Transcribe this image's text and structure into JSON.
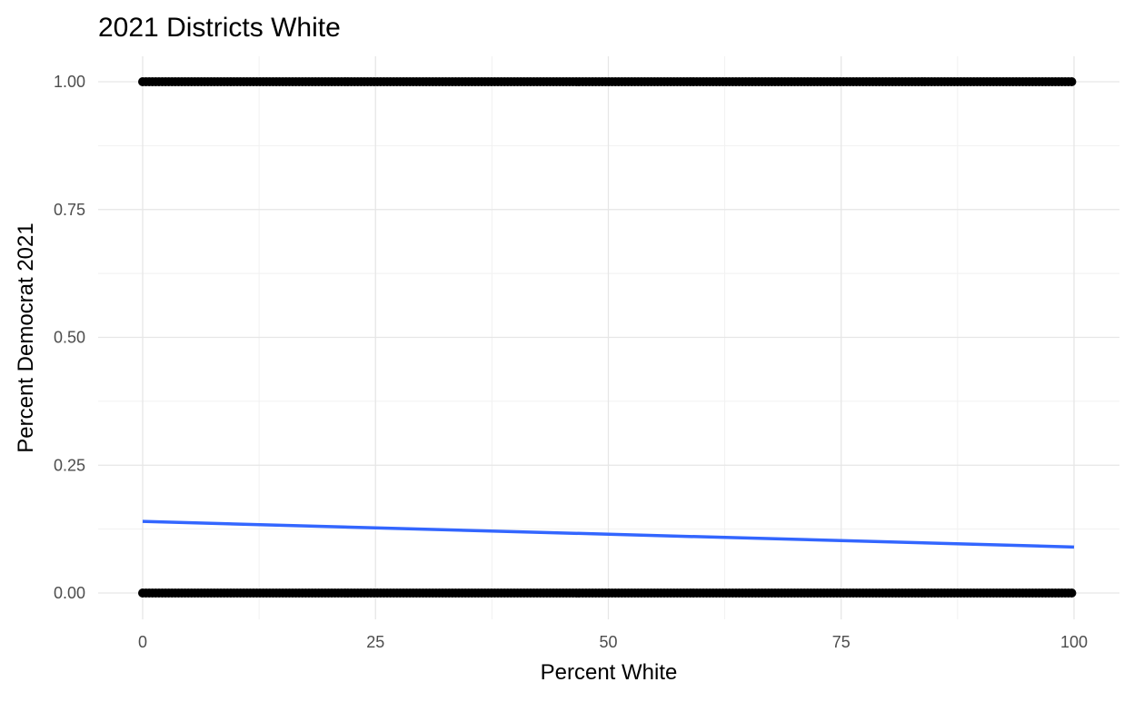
{
  "chart_data": {
    "type": "scatter",
    "title": "2021 Districts White",
    "xlabel": "Percent White",
    "ylabel": "Percent Democrat 2021",
    "xlim": [
      -5,
      103
    ],
    "ylim": [
      -0.05,
      1.05
    ],
    "x_ticks": [
      {
        "value": 0,
        "label": "0"
      },
      {
        "value": 25,
        "label": "25"
      },
      {
        "value": 50,
        "label": "50"
      },
      {
        "value": 75,
        "label": "75"
      },
      {
        "value": 100,
        "label": "100"
      }
    ],
    "y_ticks": [
      {
        "value": 0,
        "label": "0.00"
      },
      {
        "value": 0.25,
        "label": "0.25"
      },
      {
        "value": 0.5,
        "label": "0.50"
      },
      {
        "value": 0.75,
        "label": "0.75"
      },
      {
        "value": 1,
        "label": "1.00"
      }
    ],
    "points": {
      "color": "#000000",
      "y_levels": [
        0,
        1
      ],
      "x_range_at_y0": [
        0,
        100
      ],
      "x_range_at_y1": [
        0,
        100
      ]
    },
    "trend_line": {
      "color": "#3366ff",
      "x": [
        0,
        100
      ],
      "y": [
        0.14,
        0.09
      ]
    },
    "grid": true,
    "legend": "none"
  }
}
